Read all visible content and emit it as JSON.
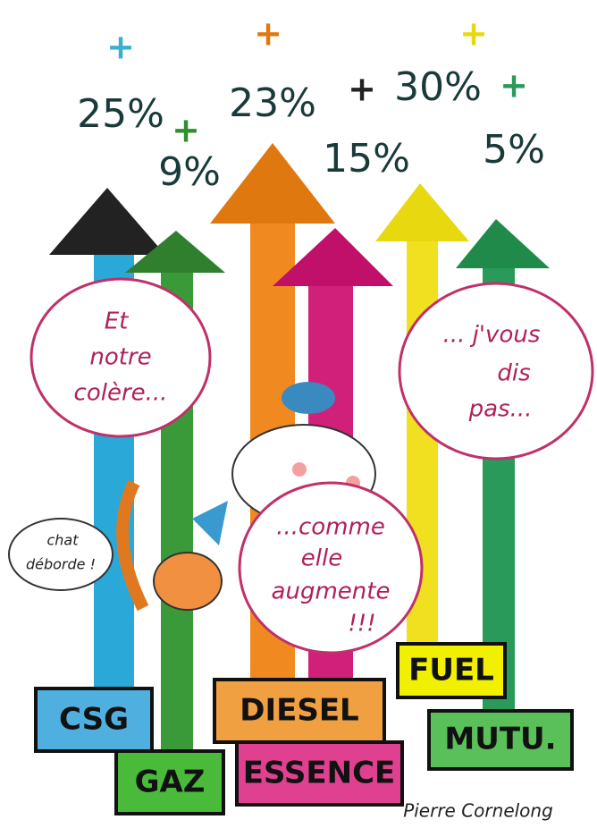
{
  "arrows": [
    {
      "plus": "+",
      "percent": "25%"
    },
    {
      "plus": "+",
      "percent": "9%"
    },
    {
      "plus": "+",
      "percent": "23%"
    },
    {
      "plus": "+",
      "percent": "15%"
    },
    {
      "plus": "+",
      "percent": "30%"
    },
    {
      "plus": "+",
      "percent": "5%"
    }
  ],
  "bubbles": [
    {
      "lines": [
        "Et",
        "notre",
        "colère..."
      ]
    },
    {
      "lines": [
        "... j'vous",
        "dis",
        "pas..."
      ]
    },
    {
      "lines": [
        "...comme",
        "elle",
        "augmente",
        "!!!"
      ]
    },
    {
      "lines": [
        "chat",
        "déborde !"
      ]
    }
  ],
  "signs": [
    "CSG",
    "GAZ",
    "DIESEL",
    "ESSENCE",
    "FUEL",
    "MUTU."
  ],
  "signature": "Pierre Cornelong"
}
